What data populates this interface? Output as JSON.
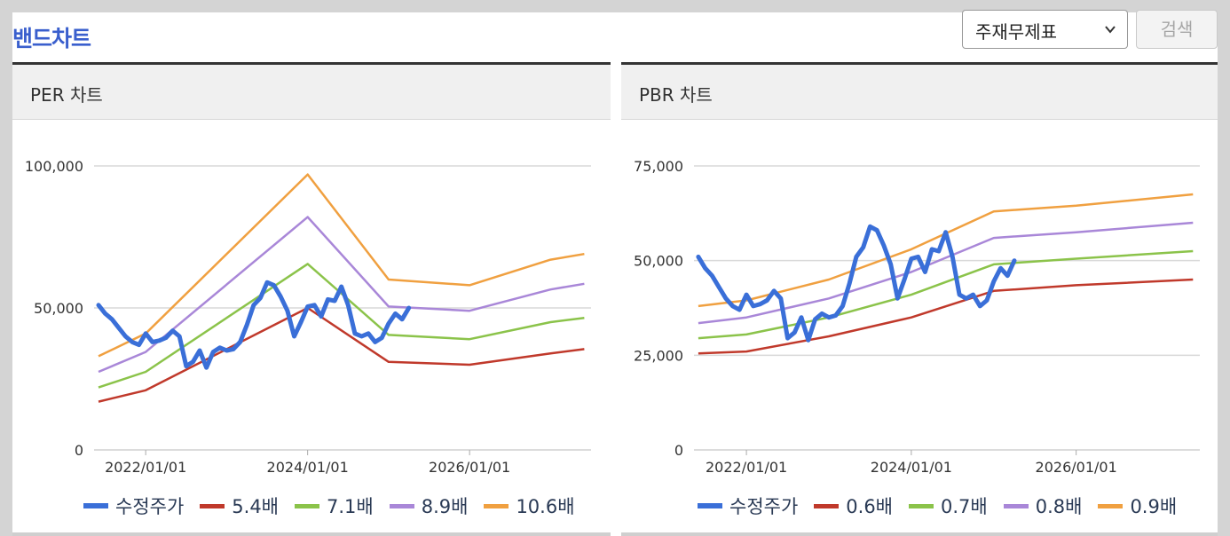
{
  "header": {
    "title": "밴드차트",
    "select_value": "주재무제표",
    "search_label": "검색"
  },
  "colors": {
    "price": "#3a6fd8",
    "red": "#c0392b",
    "green": "#8bc34a",
    "purple": "#a987d8",
    "orange": "#f0a040"
  },
  "per_panel": {
    "title": "PER 차트",
    "legend": [
      "수정주가",
      "5.4배",
      "7.1배",
      "8.9배",
      "10.6배"
    ]
  },
  "pbr_panel": {
    "title": "PBR 차트",
    "legend": [
      "수정주가",
      "0.6배",
      "0.7배",
      "0.8배",
      "0.9배"
    ]
  },
  "chart_data": [
    {
      "type": "line",
      "title": "PER 차트",
      "ylim": [
        0,
        100000
      ],
      "y_ticks": [
        0,
        50000,
        100000
      ],
      "y_tick_labels": [
        "0",
        "50,000",
        "100,000"
      ],
      "x_ticks": [
        "2022/01/01",
        "2024/01/01",
        "2026/01/01"
      ],
      "grid": true,
      "legend_position": "bottom",
      "band_x": [
        "2021/06",
        "2022/01",
        "2024/01",
        "2025/01",
        "2026/01",
        "2027/01",
        "2027/06"
      ],
      "series": [
        {
          "name": "5.4배",
          "color": "red",
          "values": [
            17000,
            21000,
            50000,
            31000,
            30000,
            34000,
            35500
          ]
        },
        {
          "name": "7.1배",
          "color": "green",
          "values": [
            22000,
            27500,
            65500,
            40500,
            39000,
            45000,
            46500
          ]
        },
        {
          "name": "8.9배",
          "color": "purple",
          "values": [
            27500,
            34500,
            82000,
            50500,
            49000,
            56500,
            58500
          ]
        },
        {
          "name": "10.6배",
          "color": "orange",
          "values": [
            33000,
            41000,
            97000,
            60000,
            58000,
            67000,
            69000
          ]
        }
      ],
      "price": {
        "name": "수정주가",
        "x": [
          "2021/06",
          "2021/07",
          "2021/08",
          "2021/09",
          "2021/10",
          "2021/11",
          "2021/12",
          "2022/01",
          "2022/02",
          "2022/03",
          "2022/04",
          "2022/05",
          "2022/06",
          "2022/07",
          "2022/08",
          "2022/09",
          "2022/10",
          "2022/11",
          "2022/12",
          "2023/01",
          "2023/02",
          "2023/03",
          "2023/04",
          "2023/05",
          "2023/06",
          "2023/07",
          "2023/08",
          "2023/09",
          "2023/10",
          "2023/11",
          "2023/12",
          "2024/01",
          "2024/02",
          "2024/03",
          "2024/04",
          "2024/05",
          "2024/06",
          "2024/07",
          "2024/08",
          "2024/09",
          "2024/10",
          "2024/11",
          "2024/12",
          "2025/01",
          "2025/02",
          "2025/03",
          "2025/04"
        ],
        "values": [
          51000,
          48000,
          46000,
          43000,
          40000,
          38000,
          37000,
          41000,
          38000,
          38500,
          39500,
          42000,
          40000,
          29500,
          31000,
          35000,
          29000,
          34500,
          36000,
          35000,
          35500,
          38000,
          44000,
          51000,
          53500,
          59000,
          58000,
          54000,
          49000,
          40000,
          45000,
          50500,
          51000,
          47000,
          53000,
          52500,
          57500,
          51000,
          41000,
          40000,
          41000,
          38000,
          39500,
          44500,
          48000,
          46000,
          50000
        ]
      }
    },
    {
      "type": "line",
      "title": "PBR 차트",
      "ylim": [
        0,
        75000
      ],
      "y_ticks": [
        0,
        25000,
        50000,
        75000
      ],
      "y_tick_labels": [
        "0",
        "25,000",
        "50,000",
        "75,000"
      ],
      "x_ticks": [
        "2022/01/01",
        "2024/01/01",
        "2026/01/01"
      ],
      "grid": true,
      "legend_position": "bottom",
      "band_x": [
        "2021/06",
        "2022/01",
        "2023/01",
        "2024/01",
        "2025/01",
        "2026/01",
        "2027/06"
      ],
      "series": [
        {
          "name": "0.6배",
          "color": "red",
          "values": [
            25500,
            26000,
            30000,
            35000,
            42000,
            43500,
            45000
          ]
        },
        {
          "name": "0.7배",
          "color": "green",
          "values": [
            29500,
            30500,
            35000,
            41000,
            49000,
            50500,
            52500
          ]
        },
        {
          "name": "0.8배",
          "color": "purple",
          "values": [
            33500,
            35000,
            40000,
            47000,
            56000,
            57500,
            60000
          ]
        },
        {
          "name": "0.9배",
          "color": "orange",
          "values": [
            38000,
            39500,
            45000,
            53000,
            63000,
            64500,
            67500
          ]
        }
      ],
      "price": {
        "name": "수정주가",
        "x": [
          "2021/06",
          "2021/07",
          "2021/08",
          "2021/09",
          "2021/10",
          "2021/11",
          "2021/12",
          "2022/01",
          "2022/02",
          "2022/03",
          "2022/04",
          "2022/05",
          "2022/06",
          "2022/07",
          "2022/08",
          "2022/09",
          "2022/10",
          "2022/11",
          "2022/12",
          "2023/01",
          "2023/02",
          "2023/03",
          "2023/04",
          "2023/05",
          "2023/06",
          "2023/07",
          "2023/08",
          "2023/09",
          "2023/10",
          "2023/11",
          "2023/12",
          "2024/01",
          "2024/02",
          "2024/03",
          "2024/04",
          "2024/05",
          "2024/06",
          "2024/07",
          "2024/08",
          "2024/09",
          "2024/10",
          "2024/11",
          "2024/12",
          "2025/01",
          "2025/02",
          "2025/03",
          "2025/04"
        ],
        "values": [
          51000,
          48000,
          46000,
          43000,
          40000,
          38000,
          37000,
          41000,
          38000,
          38500,
          39500,
          42000,
          40000,
          29500,
          31000,
          35000,
          29000,
          34500,
          36000,
          35000,
          35500,
          38000,
          44000,
          51000,
          53500,
          59000,
          58000,
          54000,
          49000,
          40000,
          45000,
          50500,
          51000,
          47000,
          53000,
          52500,
          57500,
          51000,
          41000,
          40000,
          41000,
          38000,
          39500,
          44500,
          48000,
          46000,
          50000
        ]
      }
    }
  ]
}
